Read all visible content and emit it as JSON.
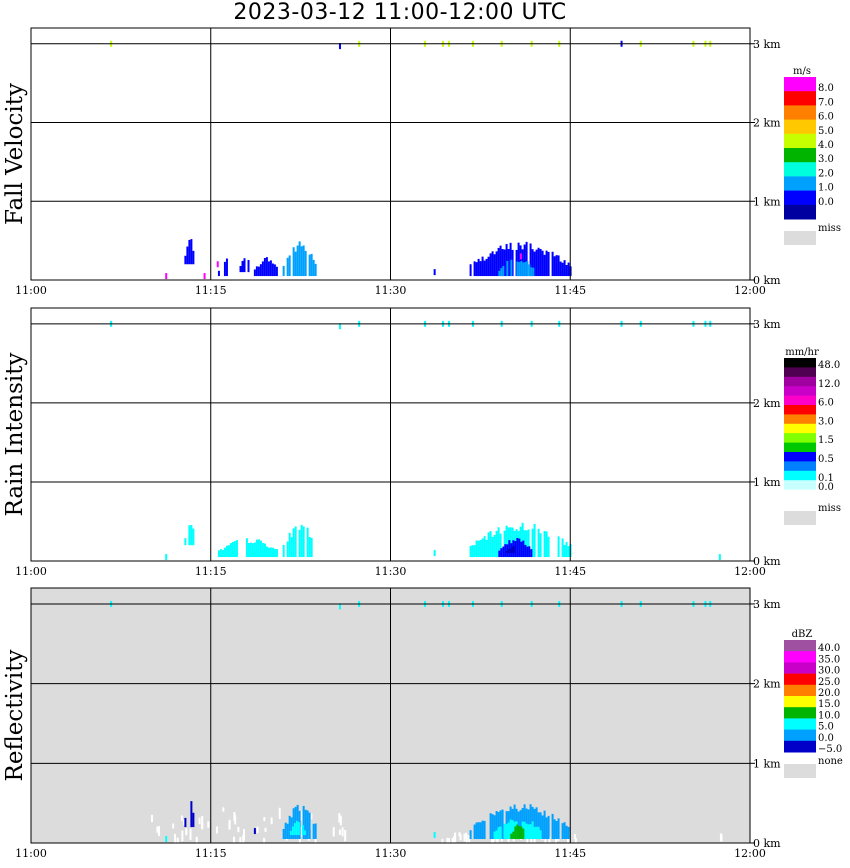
{
  "title": "2023-03-12  11:00-12:00 UTC",
  "chart_data": [
    {
      "type": "heatmap",
      "ylabel": "Fall Velocity",
      "x_ticks": [
        "11:00",
        "11:15",
        "11:30",
        "11:45",
        "12:00"
      ],
      "y_ticks": [
        "0 km",
        "1 km",
        "2 km",
        "3 km"
      ],
      "xlim": [
        0,
        60
      ],
      "ylim": [
        0,
        3.2
      ],
      "grid": true,
      "background": "#ffffff",
      "colorbar": {
        "unit": "m/s",
        "labels": [
          "8.0",
          "7.0",
          "6.0",
          "5.0",
          "4.0",
          "3.0",
          "2.0",
          "1.0",
          "0.0"
        ],
        "colors": [
          "#ff00ff",
          "#ff0000",
          "#ff8000",
          "#ffc800",
          "#c8ff00",
          "#00b400",
          "#00ffdc",
          "#00a0ff",
          "#0000ff",
          "#0000a0"
        ],
        "miss_label": "miss",
        "miss_color": "#dcdcdc"
      },
      "echoes": [
        {
          "t": [
            12.8,
            13.6
          ],
          "h": [
            0.2,
            0.55
          ],
          "value": 0.5
        },
        {
          "t": [
            15.6,
            16.6
          ],
          "h": [
            0.05,
            0.3
          ],
          "value": 0.5
        },
        {
          "t": [
            17.4,
            18.2
          ],
          "h": [
            0.1,
            0.35
          ],
          "value": 0.5
        },
        {
          "t": [
            18.6,
            20.6
          ],
          "h": [
            0.05,
            0.3
          ],
          "value": 0.5
        },
        {
          "t": [
            21.0,
            23.8
          ],
          "h": [
            0.05,
            0.5
          ],
          "value": 1.5
        },
        {
          "t": [
            36.6,
            45.0
          ],
          "h": [
            0.05,
            0.5
          ],
          "value": 0.7
        },
        {
          "t": [
            39.0,
            42.0
          ],
          "h": [
            0.05,
            0.3
          ],
          "value": 1.5
        }
      ],
      "speckles": [
        {
          "t": 11.2,
          "h": 0.05,
          "value": 8.0
        },
        {
          "t": 14.4,
          "h": 0.05,
          "value": 8.0
        },
        {
          "t": 15.5,
          "h": 0.2,
          "value": 8.0
        },
        {
          "t": 40.8,
          "h": 0.3,
          "value": 8.0
        },
        {
          "t": 33.6,
          "h": 0.1,
          "value": 0.5
        },
        {
          "t": 6.6,
          "h": 3.0,
          "value": 4.0
        },
        {
          "t": 25.7,
          "h": 2.97,
          "value": 0.5
        },
        {
          "t": 27.3,
          "h": 3.0,
          "value": 4.0
        },
        {
          "t": 32.8,
          "h": 3.0,
          "value": 4.0
        },
        {
          "t": 34.3,
          "h": 3.0,
          "value": 4.0
        },
        {
          "t": 34.8,
          "h": 3.0,
          "value": 4.0
        },
        {
          "t": 36.8,
          "h": 3.0,
          "value": 4.0
        },
        {
          "t": 39.2,
          "h": 3.0,
          "value": 4.0
        },
        {
          "t": 41.7,
          "h": 3.0,
          "value": 4.0
        },
        {
          "t": 44.0,
          "h": 3.0,
          "value": 4.0
        },
        {
          "t": 49.2,
          "h": 3.0,
          "value": 0.5
        },
        {
          "t": 50.8,
          "h": 3.0,
          "value": 4.0
        },
        {
          "t": 55.2,
          "h": 3.0,
          "value": 4.0
        },
        {
          "t": 56.2,
          "h": 3.0,
          "value": 4.0
        },
        {
          "t": 56.6,
          "h": 3.0,
          "value": 4.0
        }
      ]
    },
    {
      "type": "heatmap",
      "ylabel": "Rain Intensity",
      "x_ticks": [
        "11:00",
        "11:15",
        "11:30",
        "11:45",
        "12:00"
      ],
      "y_ticks": [
        "0 km",
        "1 km",
        "2 km",
        "3 km"
      ],
      "xlim": [
        0,
        60
      ],
      "ylim": [
        0,
        3.2
      ],
      "grid": true,
      "background": "#ffffff",
      "colorbar": {
        "unit": "mm/hr",
        "labels": [
          "48.0",
          "12.0",
          "6.0",
          "3.0",
          "1.5",
          "0.5",
          "0.1",
          "0.0"
        ],
        "label_positions": [
          0,
          2,
          4,
          6,
          8,
          10,
          12,
          13
        ],
        "colors": [
          "#000000",
          "#500050",
          "#a000a0",
          "#c800c8",
          "#ff00c8",
          "#ff0000",
          "#ff8000",
          "#ffff00",
          "#80ff00",
          "#00c800",
          "#0000ff",
          "#0080ff",
          "#00ffff",
          "#c8ffff",
          "#ffffff"
        ],
        "miss_label": "miss",
        "miss_color": "#dcdcdc"
      },
      "echoes": [
        {
          "t": [
            12.8,
            13.6
          ],
          "h": [
            0.2,
            0.55
          ],
          "value": 0.1
        },
        {
          "t": [
            15.6,
            20.6
          ],
          "h": [
            0.05,
            0.3
          ],
          "value": 0.1
        },
        {
          "t": [
            21.0,
            23.8
          ],
          "h": [
            0.05,
            0.5
          ],
          "value": 0.1
        },
        {
          "t": [
            36.6,
            45.0
          ],
          "h": [
            0.05,
            0.5
          ],
          "value": 0.1
        },
        {
          "t": [
            39.0,
            41.8
          ],
          "h": [
            0.05,
            0.3
          ],
          "value": 0.5
        },
        {
          "t": [
            39.6,
            40.8
          ],
          "h": [
            0.1,
            0.2
          ],
          "value": 1.0
        }
      ],
      "speckles": [
        {
          "t": 11.2,
          "h": 0.05,
          "value": 0.1
        },
        {
          "t": 33.6,
          "h": 0.1,
          "value": 0.1
        },
        {
          "t": 57.4,
          "h": 0.05,
          "value": 0.1
        },
        {
          "t": 6.6,
          "h": 3.0,
          "value": 0.1
        },
        {
          "t": 25.7,
          "h": 2.97,
          "value": 0.1
        },
        {
          "t": 27.3,
          "h": 3.0,
          "value": 0.1
        },
        {
          "t": 32.8,
          "h": 3.0,
          "value": 0.1
        },
        {
          "t": 34.3,
          "h": 3.0,
          "value": 0.1
        },
        {
          "t": 34.8,
          "h": 3.0,
          "value": 0.1
        },
        {
          "t": 36.8,
          "h": 3.0,
          "value": 0.1
        },
        {
          "t": 39.2,
          "h": 3.0,
          "value": 0.1
        },
        {
          "t": 41.7,
          "h": 3.0,
          "value": 0.1
        },
        {
          "t": 44.0,
          "h": 3.0,
          "value": 0.1
        },
        {
          "t": 49.2,
          "h": 3.0,
          "value": 0.1
        },
        {
          "t": 50.8,
          "h": 3.0,
          "value": 0.1
        },
        {
          "t": 55.2,
          "h": 3.0,
          "value": 0.1
        },
        {
          "t": 56.2,
          "h": 3.0,
          "value": 0.1
        },
        {
          "t": 56.6,
          "h": 3.0,
          "value": 0.1
        }
      ]
    },
    {
      "type": "heatmap",
      "ylabel": "Reflectivity",
      "x_ticks": [
        "11:00",
        "11:15",
        "11:30",
        "11:45",
        "12:00"
      ],
      "y_ticks": [
        "0 km",
        "1 km",
        "2 km",
        "3 km"
      ],
      "xlim": [
        0,
        60
      ],
      "ylim": [
        0,
        3.2
      ],
      "grid": true,
      "background": "#dcdcdc",
      "colorbar": {
        "unit": "dBZ",
        "labels": [
          "40.0",
          "35.0",
          "30.0",
          "25.0",
          "20.0",
          "15.0",
          "10.0",
          "5.0",
          "0.0",
          "−5.0"
        ],
        "colors": [
          "#a050a0",
          "#ff00ff",
          "#c800c8",
          "#ff0000",
          "#ff8000",
          "#ffff00",
          "#00b400",
          "#00ffff",
          "#00a0ff",
          "#0000c8"
        ],
        "miss_label": "none",
        "miss_color": "#dcdcdc"
      },
      "echoes": [
        {
          "t": [
            12.8,
            13.6
          ],
          "h": [
            0.2,
            0.55
          ],
          "value": -2.0
        },
        {
          "t": [
            21.0,
            23.8
          ],
          "h": [
            0.05,
            0.5
          ],
          "value": 2.0
        },
        {
          "t": [
            21.6,
            22.8
          ],
          "h": [
            0.1,
            0.3
          ],
          "value": 7.0
        },
        {
          "t": [
            36.6,
            45.0
          ],
          "h": [
            0.05,
            0.5
          ],
          "value": 2.0
        },
        {
          "t": [
            38.6,
            42.6
          ],
          "h": [
            0.05,
            0.35
          ],
          "value": 7.0
        },
        {
          "t": [
            40.0,
            41.2
          ],
          "h": [
            0.05,
            0.25
          ],
          "value": 13.0
        }
      ],
      "speckles": [
        {
          "t": 11.2,
          "h": 0.05,
          "value": 7.0
        },
        {
          "t": 18.6,
          "h": 0.15,
          "value": -2.0
        },
        {
          "t": 33.6,
          "h": 0.1,
          "value": 7.0
        },
        {
          "t": 6.6,
          "h": 3.0,
          "value": 7.0
        },
        {
          "t": 25.7,
          "h": 2.97,
          "value": 7.0
        },
        {
          "t": 27.3,
          "h": 3.0,
          "value": 7.0
        },
        {
          "t": 32.8,
          "h": 3.0,
          "value": 7.0
        },
        {
          "t": 34.3,
          "h": 3.0,
          "value": 7.0
        },
        {
          "t": 34.8,
          "h": 3.0,
          "value": 7.0
        },
        {
          "t": 36.8,
          "h": 3.0,
          "value": 7.0
        },
        {
          "t": 39.2,
          "h": 3.0,
          "value": 7.0
        },
        {
          "t": 41.7,
          "h": 3.0,
          "value": 7.0
        },
        {
          "t": 44.0,
          "h": 3.0,
          "value": 7.0
        },
        {
          "t": 49.2,
          "h": 3.0,
          "value": 7.0
        },
        {
          "t": 50.8,
          "h": 3.0,
          "value": 7.0
        },
        {
          "t": 55.2,
          "h": 3.0,
          "value": 7.0
        },
        {
          "t": 56.2,
          "h": 3.0,
          "value": 7.0
        },
        {
          "t": 56.6,
          "h": 3.0,
          "value": 7.0
        }
      ],
      "white_noise": [
        {
          "t": [
            10.0,
            27.0
          ],
          "h": [
            0.0,
            0.4
          ]
        },
        {
          "t": [
            34.0,
            46.0
          ],
          "h": [
            0.0,
            0.1
          ]
        },
        {
          "t": [
            57.0,
            57.8
          ],
          "h": [
            0.0,
            0.08
          ]
        }
      ]
    }
  ]
}
